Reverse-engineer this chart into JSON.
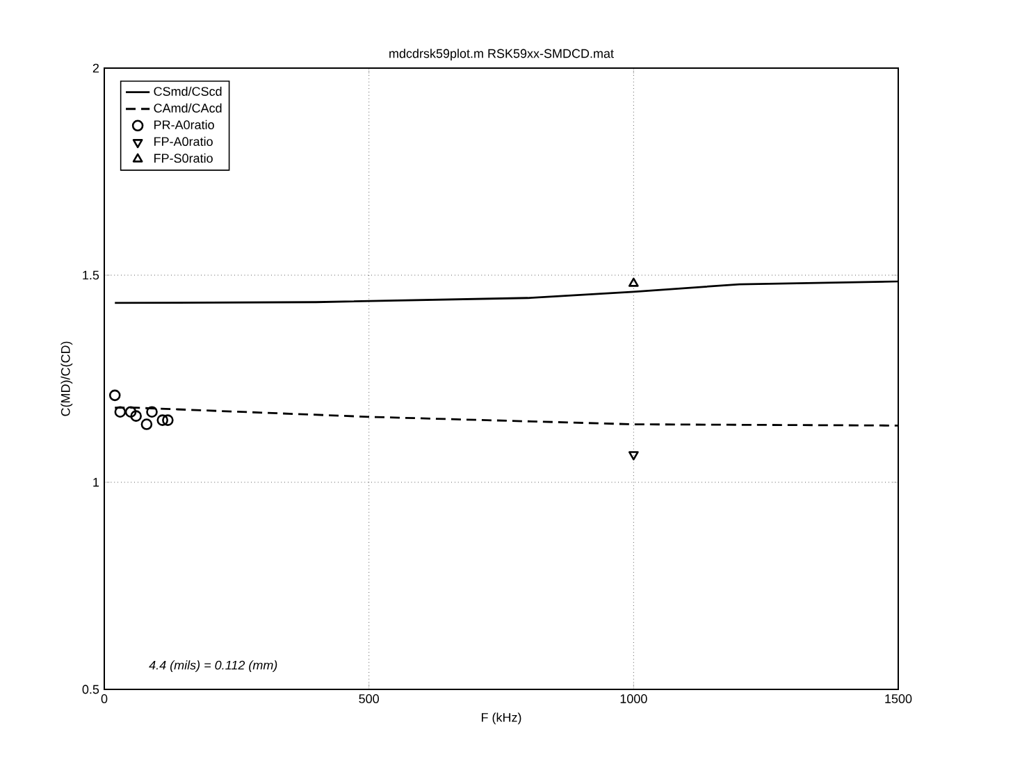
{
  "chart_data": {
    "type": "line",
    "title": "mdcdrsk59plot.m    RSK59xx-SMDCD.mat",
    "xlabel": "F (kHz)",
    "ylabel": "C(MD)/C(CD)",
    "xlim": [
      0,
      1500
    ],
    "ylim": [
      0.5,
      2
    ],
    "xticks": [
      0,
      500,
      1000,
      1500
    ],
    "yticks": [
      0.5,
      1,
      1.5,
      2
    ],
    "grid": true,
    "legend": "top left",
    "annotations": [
      "4.4 (mils) = 0.112 (mm)"
    ],
    "series": [
      {
        "name": "CSmd/CScd",
        "line_style": "solid",
        "marker": "none",
        "color": "#000000",
        "x": [
          20,
          400,
          800,
          1000,
          1200,
          1500
        ],
        "values": [
          1.433,
          1.435,
          1.445,
          1.46,
          1.478,
          1.485
        ]
      },
      {
        "name": "CAmd/CAcd",
        "line_style": "dashed",
        "marker": "none",
        "color": "#000000",
        "x": [
          20,
          60,
          500,
          1000,
          1500
        ],
        "values": [
          1.18,
          1.18,
          1.158,
          1.14,
          1.137
        ]
      },
      {
        "name": "PR-A0ratio",
        "type": "scatter",
        "marker": "circle",
        "color": "#000000",
        "x": [
          20,
          30,
          50,
          60,
          80,
          90,
          110,
          120
        ],
        "values": [
          1.21,
          1.17,
          1.17,
          1.16,
          1.14,
          1.17,
          1.15,
          1.15
        ]
      },
      {
        "name": "FP-A0ratio",
        "type": "scatter",
        "marker": "triangle-down",
        "color": "#000000",
        "x": [
          1000
        ],
        "values": [
          1.067
        ]
      },
      {
        "name": "FP-S0ratio",
        "type": "scatter",
        "marker": "triangle",
        "color": "#000000",
        "x": [
          1000
        ],
        "values": [
          1.48
        ]
      }
    ]
  }
}
